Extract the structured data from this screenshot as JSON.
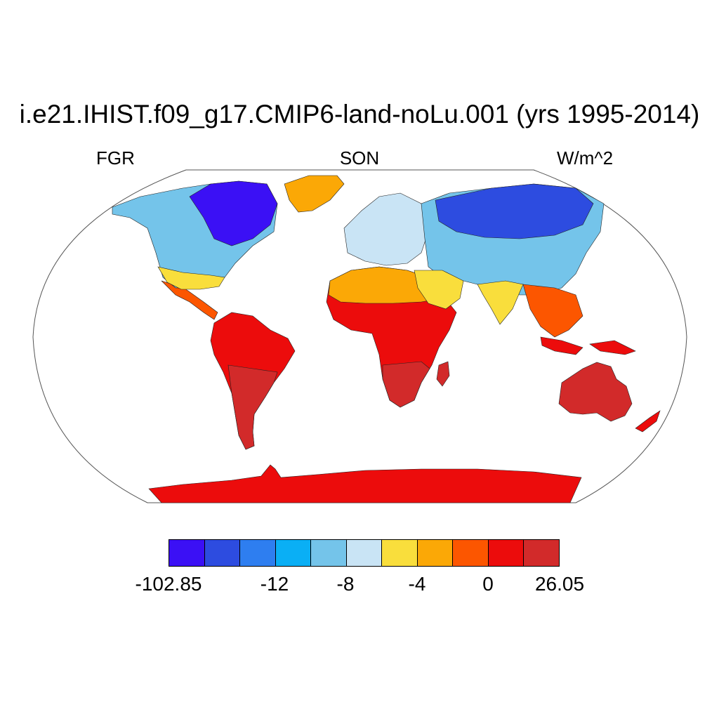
{
  "title": "i.e21.IHIST.f09_g17.CMIP6-land-noLu.001 (yrs 1995-2014)",
  "subtitle": {
    "left": "FGR",
    "center": "SON",
    "right": "W/m^2"
  },
  "colorbar": {
    "colors": [
      "#3b10f5",
      "#2d4ce0",
      "#2e7ef0",
      "#0aaff5",
      "#74c4ea",
      "#c9e4f5",
      "#f9de3c",
      "#fba806",
      "#fc5600",
      "#ec0c0c",
      "#d22a2a"
    ],
    "labels": [
      "-102.85",
      "-12",
      "-8",
      "-4",
      "0",
      "26.05"
    ]
  },
  "map": {
    "projection": "Robinson",
    "colors": {
      "antarctica": "#ec0c0c",
      "australia": "#d22a2a",
      "south_america": "#ec0c0c",
      "south_america_south": "#d22a2a",
      "africa": "#ec0c0c",
      "africa_south": "#d22a2a",
      "greenland": "#fba806",
      "north_america": "#74c4ea",
      "canada_north": "#3b10f5",
      "us_south": "#f9de3c",
      "europe": "#c9e4f5",
      "asia": "#74c4ea",
      "siberia": "#2d4ce0",
      "sahara": "#fba806",
      "india": "#f9de3c",
      "se_asia": "#fc5600"
    }
  }
}
